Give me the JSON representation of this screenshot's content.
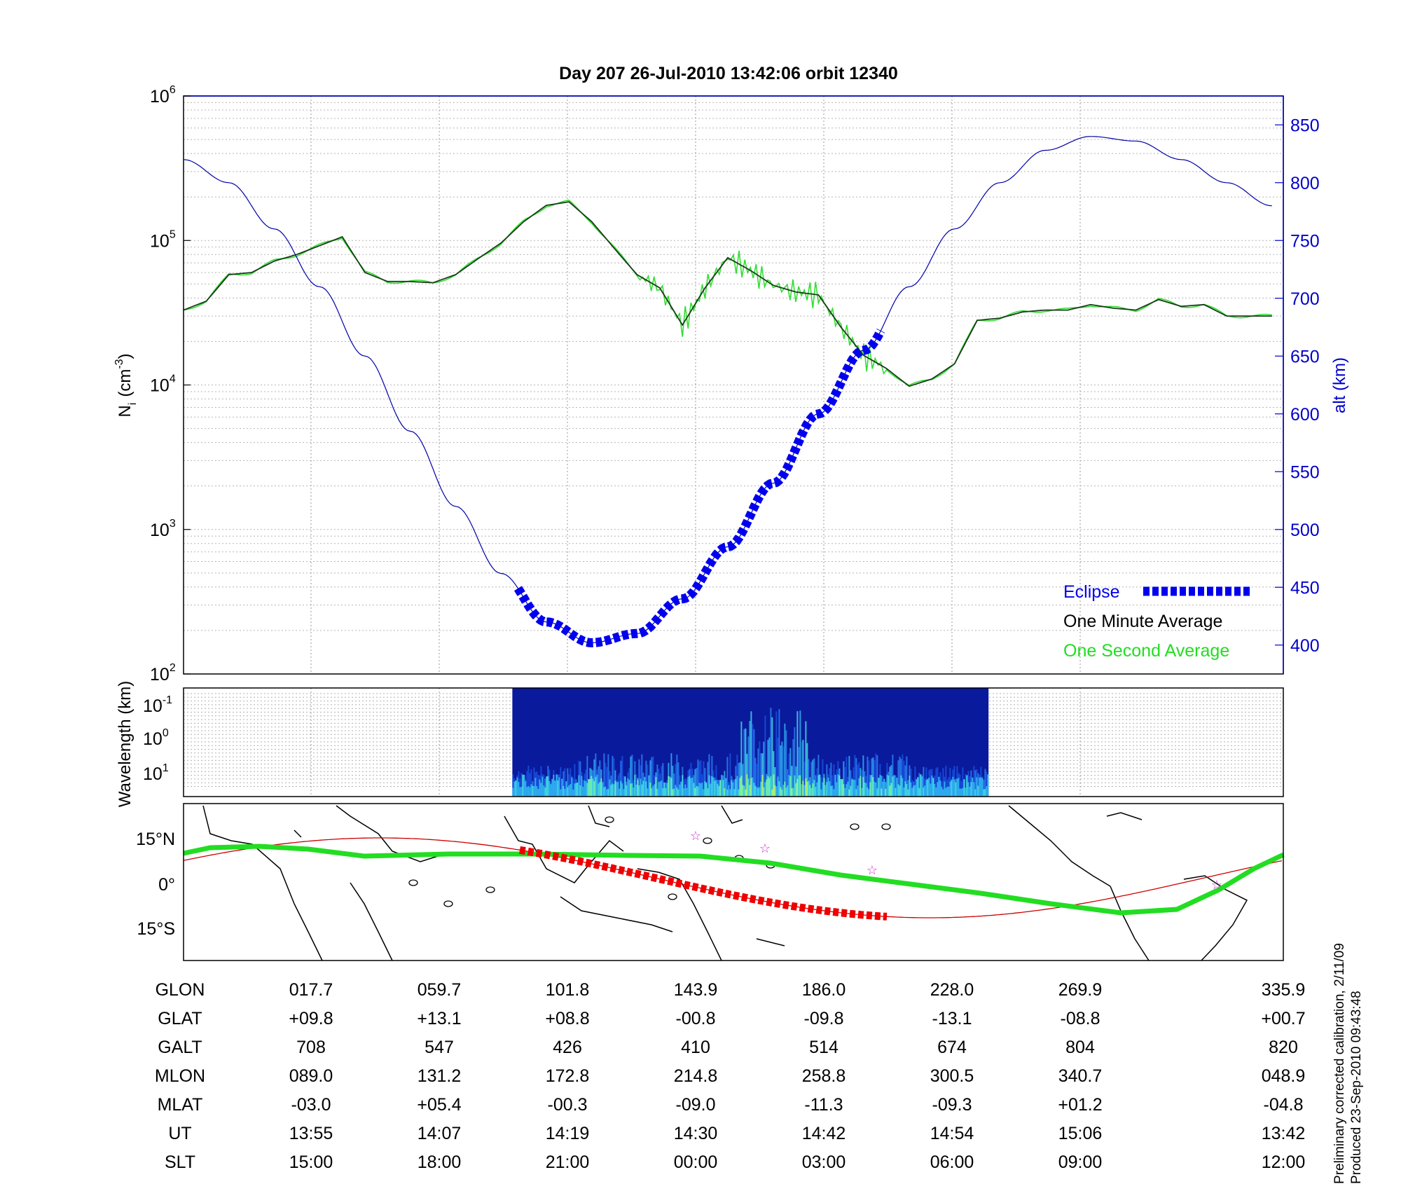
{
  "chart_data": [
    {
      "type": "line",
      "title": "Day 207  26-Jul-2010 13:42:06   orbit 12340",
      "ylabel_left": "N",
      "ylabel_left_sub": "i",
      "ylabel_left_unit": "(cm",
      "ylabel_left_exp": "-3",
      "ylabel_right": "alt (km)",
      "y_left_scale": "log",
      "y_left_range": [
        100,
        1000000
      ],
      "y_left_ticks": [
        {
          "base": "10",
          "exp": "2",
          "value": 100
        },
        {
          "base": "10",
          "exp": "3",
          "value": 1000
        },
        {
          "base": "10",
          "exp": "4",
          "value": 10000
        },
        {
          "base": "10",
          "exp": "5",
          "value": 100000
        },
        {
          "base": "10",
          "exp": "6",
          "value": 1000000
        }
      ],
      "y_right_range": [
        375,
        875
      ],
      "y_right_ticks": [
        "400",
        "450",
        "500",
        "550",
        "600",
        "650",
        "700",
        "750",
        "800",
        "850"
      ],
      "grid": true,
      "legend_position": "bottom-right",
      "legend": [
        {
          "label": "Eclipse",
          "color": "#0000ee"
        },
        {
          "label": "One Minute Average",
          "color": "#000000"
        },
        {
          "label": "One Second Average",
          "color": "#22dd22"
        }
      ],
      "series": [
        {
          "name": "One Minute Average",
          "axis": "left",
          "color": "#1a4d1a",
          "x_minutes": [
            0,
            2,
            4,
            6,
            8,
            10,
            12,
            14,
            16,
            18,
            20,
            22,
            24,
            26,
            28,
            30,
            32,
            34,
            36,
            38,
            40,
            42,
            44,
            46,
            48,
            50,
            52,
            54,
            56,
            58,
            60,
            62,
            64,
            66,
            68,
            70,
            72,
            74,
            76,
            78,
            80,
            82,
            84,
            86,
            88,
            90,
            92,
            94,
            96
          ],
          "y": [
            33000,
            38000,
            58000,
            60000,
            72000,
            80000,
            92000,
            106000,
            60000,
            52000,
            52000,
            51000,
            58000,
            75000,
            96000,
            135000,
            175000,
            185000,
            135000,
            88000,
            58000,
            47000,
            26000,
            47000,
            76000,
            62000,
            49000,
            44000,
            42000,
            25000,
            16000,
            13000,
            9800,
            11000,
            14000,
            28000,
            29000,
            32000,
            33000,
            33000,
            36000,
            34000,
            33000,
            39000,
            35000,
            36000,
            30000,
            30000,
            30000
          ]
        },
        {
          "name": "alt (km)",
          "axis": "right",
          "color": "#0000aa",
          "x_minutes": [
            0,
            4,
            8,
            12,
            16,
            20,
            24,
            28,
            32,
            36,
            40,
            44,
            48,
            52,
            56,
            60,
            64,
            68,
            72,
            76,
            80,
            84,
            88,
            92,
            96
          ],
          "y": [
            820,
            800,
            760,
            710,
            650,
            585,
            520,
            462,
            420,
            402,
            410,
            440,
            485,
            540,
            600,
            655,
            710,
            760,
            800,
            828,
            840,
            836,
            820,
            800,
            780
          ]
        }
      ],
      "eclipse_minutes": [
        29.5,
        61.5
      ]
    },
    {
      "type": "heatmap",
      "ylabel": "Wavelength (km)",
      "y_scale": "log",
      "y_ticks": [
        {
          "base": "10",
          "exp": "-1"
        },
        {
          "base": "10",
          "exp": "0"
        },
        {
          "base": "10",
          "exp": "1"
        }
      ],
      "colormap": "jet",
      "data_minutes": [
        29,
        71
      ]
    },
    {
      "type": "map",
      "y_ticks": [
        "15°N",
        "0°",
        "15°S"
      ],
      "ground_track_color": "#cc0000",
      "magnetic_equator_color": "#22dd22",
      "eclipse_color": "#ee0000",
      "star_color": "#cc33cc"
    }
  ],
  "table": {
    "rows": [
      {
        "label": "GLON",
        "values": [
          "017.7",
          "059.7",
          "101.8",
          "143.9",
          "186.0",
          "228.0",
          "269.9",
          "335.9"
        ]
      },
      {
        "label": "GLAT",
        "values": [
          "+09.8",
          "+13.1",
          "+08.8",
          "-00.8",
          "-09.8",
          "-13.1",
          "-08.8",
          "+00.7"
        ]
      },
      {
        "label": "GALT",
        "values": [
          "708",
          "547",
          "426",
          "410",
          "514",
          "674",
          "804",
          "820"
        ]
      },
      {
        "label": "MLON",
        "values": [
          "089.0",
          "131.2",
          "172.8",
          "214.8",
          "258.8",
          "300.5",
          "340.7",
          "048.9"
        ]
      },
      {
        "label": "MLAT",
        "values": [
          "-03.0",
          "+05.4",
          "-00.3",
          "-09.0",
          "-11.3",
          "-09.3",
          "+01.2",
          "-04.8"
        ]
      },
      {
        "label": "UT",
        "values": [
          "13:55",
          "14:07",
          "14:19",
          "14:30",
          "14:42",
          "14:54",
          "15:06",
          "13:42"
        ]
      },
      {
        "label": "SLT",
        "values": [
          "15:00",
          "18:00",
          "21:00",
          "00:00",
          "03:00",
          "06:00",
          "09:00",
          "12:00"
        ]
      }
    ]
  },
  "footnote": {
    "line1": "Preliminary corrected calibration, 2/11/09",
    "line2": "Produced 23-Sep-2010 09:43:48"
  }
}
